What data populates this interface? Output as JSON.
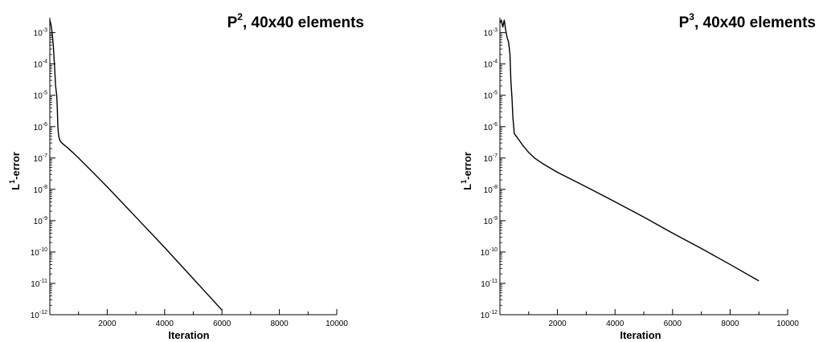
{
  "chart_data": [
    {
      "type": "line",
      "title": {
        "base": "P",
        "sup": "2",
        "rest": ",  40x40 elements"
      },
      "xlabel": "Iteration",
      "ylabel": {
        "base": "L",
        "sup": "1",
        "rest": "-error"
      },
      "xlim": [
        0,
        10000
      ],
      "ylim": [
        1e-12,
        0.003
      ],
      "yscale": "log",
      "xticks": [
        2000,
        4000,
        6000,
        8000,
        10000
      ],
      "xticks_minor": [
        1000,
        3000,
        5000,
        7000,
        9000
      ],
      "yticks": [
        {
          "value": 0.001,
          "base": "10",
          "exp": "-3"
        },
        {
          "value": 0.0001,
          "base": "10",
          "exp": "-4"
        },
        {
          "value": 1e-05,
          "base": "10",
          "exp": "-5"
        },
        {
          "value": 1e-06,
          "base": "10",
          "exp": "-6"
        },
        {
          "value": 1e-07,
          "base": "10",
          "exp": "-7"
        },
        {
          "value": 1e-08,
          "base": "10",
          "exp": "-8"
        },
        {
          "value": 1e-09,
          "base": "10",
          "exp": "-9"
        },
        {
          "value": 1e-10,
          "base": "10",
          "exp": "-10"
        },
        {
          "value": 1e-11,
          "base": "10",
          "exp": "-11"
        },
        {
          "value": 1e-12,
          "base": "10",
          "exp": "-12"
        }
      ],
      "grid": false,
      "series": [
        {
          "x": [
            0,
            40,
            80,
            120,
            160,
            200,
            240,
            260,
            280,
            300,
            320,
            360,
            420,
            500,
            600,
            800,
            1000,
            1500,
            2000,
            3000,
            4000,
            5000,
            6000
          ],
          "y": [
            0.0025,
            0.0018,
            0.001,
            0.0004,
            0.0001,
            2e-05,
            1e-05,
            4e-06,
            1e-06,
            6e-07,
            4.5e-07,
            3.5e-07,
            3e-07,
            2.6e-07,
            2.2e-07,
            1.5e-07,
            1e-07,
            3.5e-08,
            1.2e-08,
            1.3e-09,
            1.4e-10,
            1.4e-11,
            1.4e-12
          ]
        }
      ]
    },
    {
      "type": "line",
      "title": {
        "base": "P",
        "sup": "3",
        "rest": ",  40x40 elements"
      },
      "xlabel": "Iteration",
      "ylabel": {
        "base": "L",
        "sup": "1",
        "rest": "-error"
      },
      "xlim": [
        0,
        10000
      ],
      "ylim": [
        1e-12,
        0.003
      ],
      "yscale": "log",
      "xticks": [
        2000,
        4000,
        6000,
        8000,
        10000
      ],
      "xticks_minor": [
        1000,
        3000,
        5000,
        7000,
        9000
      ],
      "yticks": [
        {
          "value": 0.001,
          "base": "10",
          "exp": "-3"
        },
        {
          "value": 0.0001,
          "base": "10",
          "exp": "-4"
        },
        {
          "value": 1e-05,
          "base": "10",
          "exp": "-5"
        },
        {
          "value": 1e-06,
          "base": "10",
          "exp": "-6"
        },
        {
          "value": 1e-07,
          "base": "10",
          "exp": "-7"
        },
        {
          "value": 1e-08,
          "base": "10",
          "exp": "-8"
        },
        {
          "value": 1e-09,
          "base": "10",
          "exp": "-9"
        },
        {
          "value": 1e-10,
          "base": "10",
          "exp": "-10"
        },
        {
          "value": 1e-11,
          "base": "10",
          "exp": "-11"
        },
        {
          "value": 1e-12,
          "base": "10",
          "exp": "-12"
        }
      ],
      "grid": false,
      "series": [
        {
          "x": [
            0,
            50,
            100,
            150,
            200,
            250,
            300,
            350,
            380,
            420,
            450,
            500,
            600,
            800,
            1000,
            1200,
            1500,
            2000,
            3000,
            4000,
            5000,
            6000,
            7000,
            8000,
            9000
          ],
          "y": [
            0.002,
            0.0025,
            0.0015,
            0.0025,
            0.0012,
            0.0007,
            0.0005,
            0.0002,
            3e-05,
            8e-06,
            2e-06,
            6e-07,
            4.5e-07,
            2.5e-07,
            1.5e-07,
            1e-07,
            6.5e-08,
            3.5e-08,
            1.2e-08,
            4e-09,
            1.3e-09,
            4e-10,
            1.3e-10,
            4e-11,
            1.2e-11
          ]
        }
      ]
    }
  ]
}
